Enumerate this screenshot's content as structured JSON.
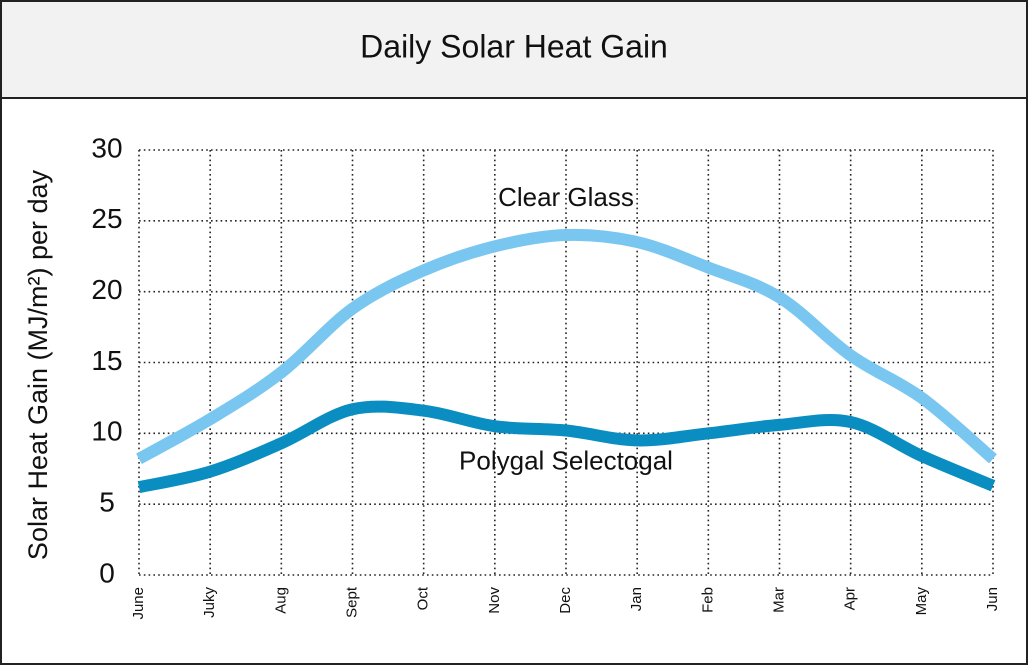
{
  "chart_data": {
    "type": "line",
    "title": "Daily Solar Heat Gain",
    "y_label": "Solar Heat Gain (MJ/m²) per day",
    "categories": [
      "June",
      "Juky",
      "Aug",
      "Sept",
      "Oct",
      "Nov",
      "Dec",
      "Jan",
      "Feb",
      "Mar",
      "Apr",
      "May",
      "Jun"
    ],
    "series": [
      {
        "name": "Clear Glass",
        "color": "#79c7f0",
        "values": [
          8.2,
          11.0,
          14.3,
          18.8,
          21.5,
          23.2,
          24.0,
          23.5,
          21.7,
          19.6,
          15.5,
          12.5,
          8.2
        ]
      },
      {
        "name": "Polygal Selectogal",
        "color": "#0a8dc0",
        "values": [
          6.2,
          7.3,
          9.3,
          11.7,
          11.6,
          10.5,
          10.2,
          9.5,
          10.0,
          10.6,
          10.8,
          8.4,
          6.3
        ]
      }
    ],
    "ylim": [
      0,
      30
    ],
    "yticks": [
      0,
      5,
      10,
      15,
      20,
      25,
      30
    ],
    "grid": true
  }
}
